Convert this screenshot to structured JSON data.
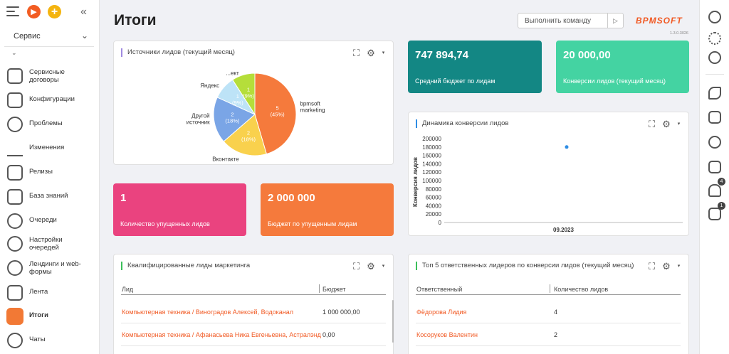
{
  "sidebar": {
    "workspace": "Сервис",
    "items": [
      {
        "label": "Сервисные договоры",
        "icon": "contract-icon"
      },
      {
        "label": "Конфигурации",
        "icon": "configuration-icon"
      },
      {
        "label": "Проблемы",
        "icon": "problem-icon"
      },
      {
        "label": "Изменения",
        "icon": "pencil-icon"
      },
      {
        "label": "Релизы",
        "icon": "folder-icon"
      },
      {
        "label": "База знаний",
        "icon": "book-icon"
      },
      {
        "label": "Очереди",
        "icon": "queue-icon"
      },
      {
        "label": "Настройки очередей",
        "icon": "queue-settings-icon"
      },
      {
        "label": "Лендинги и web-формы",
        "icon": "target-icon"
      },
      {
        "label": "Лента",
        "icon": "chat-bubble-icon"
      },
      {
        "label": "Итоги",
        "icon": "pie-chart-icon",
        "active": true
      },
      {
        "label": "Чаты",
        "icon": "chats-icon"
      }
    ]
  },
  "header": {
    "title": "Итоги",
    "command_placeholder": "Выполнить команду",
    "logo": "BPMSOFT",
    "version": "1.3.0.3026"
  },
  "pie_widget": {
    "title": "Источники лидов (текущий месяц)"
  },
  "chart_data": [
    {
      "type": "pie",
      "title": "Источники лидов (текущий месяц)",
      "slices": [
        {
          "label": "bpmsoft marketing",
          "value": 5,
          "percent": "45%",
          "color": "#f57a3c"
        },
        {
          "label": "Вконтакте",
          "value": 2,
          "percent": "18%",
          "color": "#f9d14d"
        },
        {
          "label": "Другой источник",
          "value": 2,
          "percent": "18%",
          "color": "#7aa5e6"
        },
        {
          "label": "Яндекс",
          "value": 1,
          "percent": "9%",
          "color": "#bde3f7"
        },
        {
          "label": "...ект",
          "value": 1,
          "percent": "9%",
          "color": "#b5de3a"
        }
      ]
    },
    {
      "type": "scatter",
      "title": "Динамика конверсии лидов",
      "ylabel": "Конверсия лидов",
      "categories": [
        "09.2023"
      ],
      "values": [
        180000
      ],
      "ylim": [
        0,
        200000
      ],
      "yticks": [
        "200000",
        "180000",
        "160000",
        "140000",
        "120000",
        "100000",
        "80000",
        "60000",
        "40000",
        "20000",
        "0"
      ]
    }
  ],
  "kpis": {
    "budget": {
      "value": "747 894,74",
      "label": "Средний бюджет по лидам",
      "color": "#138784"
    },
    "conversions": {
      "value": "20 000,00",
      "label": "Конверсии лидов (текущий месяц)",
      "color": "#44d3a2"
    },
    "lost": {
      "value": "1",
      "label": "Количество упущенных лидов",
      "color": "#ea437f"
    },
    "lost_budget": {
      "value": "2 000 000",
      "label": "Бюджет по упущенным лидам",
      "color": "#f57a3c"
    }
  },
  "dynamics_widget": {
    "title": "Динамика конверсии лидов",
    "ylabel": "Конверсия лидов",
    "xlabel": "09.2023"
  },
  "qualified": {
    "title": "Квалифицированные лиды маркетинга",
    "columns": [
      "Лид",
      "Бюджет"
    ],
    "rows": [
      [
        "Компьютерная техника / Виноградов Алексей, Водоканал",
        "1 000 000,00"
      ],
      [
        "Компьютерная техника / Афанасьева Ника Евгеньевна, Астралэнд",
        "0,00"
      ]
    ]
  },
  "top5": {
    "title": "Топ 5 ответственных лидеров по конверсии лидов (текущий месяц)",
    "columns": [
      "Ответственный",
      "Количество лидов"
    ],
    "rows": [
      [
        "Фёдорова Лидия",
        "4"
      ],
      [
        "Косоруков Валентин",
        "2"
      ]
    ]
  },
  "rightbar": {
    "notifications_badge": "4",
    "tasks_badge": "1"
  }
}
